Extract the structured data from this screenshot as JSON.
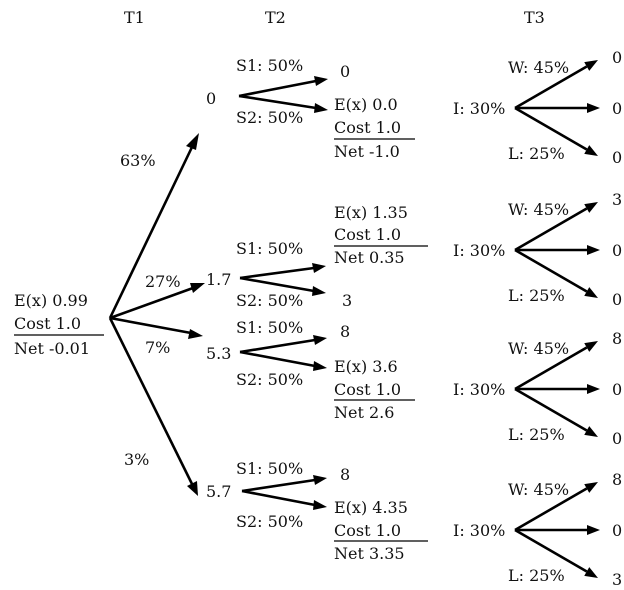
{
  "headers": {
    "t1": "T1",
    "t2": "T2",
    "t3": "T3"
  },
  "root": {
    "ex": "E(x)  0.99",
    "cost": "Cost  1.0",
    "net": "Net  -0.01"
  },
  "t1_probs": {
    "a": "63%",
    "b": "27%",
    "c": "7%",
    "d": "3%"
  },
  "t2": [
    {
      "node": "0",
      "s1": "S1: 50%",
      "s2": "S2: 50%",
      "top": "0",
      "ex": "E(x)  0.0",
      "cost": "Cost  1.0",
      "net": "Net  -1.0"
    },
    {
      "node": "1.7",
      "s1": "S1: 50%",
      "s2": "S2: 50%",
      "bottom": "3",
      "ex": "E(x)  1.35",
      "cost": "Cost  1.0",
      "net": "Net  0.35"
    },
    {
      "node": "5.3",
      "s1": "S1: 50%",
      "s2": "S2: 50%",
      "top": "8",
      "ex": "E(x)  3.6",
      "cost": "Cost  1.0",
      "net": "Net  2.6"
    },
    {
      "node": "5.7",
      "s1": "S1: 50%",
      "s2": "S2: 50%",
      "top": "8",
      "ex": "E(x)  4.35",
      "cost": "Cost  1.0",
      "net": "Net  3.35"
    }
  ],
  "t3": [
    {
      "w": "W: 45%",
      "i": "I: 30%",
      "l": "L: 25%",
      "out_top": "0",
      "out_mid": "0",
      "out_bot": "0"
    },
    {
      "w": "W: 45%",
      "i": "I: 30%",
      "l": "L: 25%",
      "out_top": "3",
      "out_mid": "0",
      "out_bot": "0"
    },
    {
      "w": "W: 45%",
      "i": "I: 30%",
      "l": "L: 25%",
      "out_top": "8",
      "out_mid": "0",
      "out_bot": "0"
    },
    {
      "w": "W: 45%",
      "i": "I: 30%",
      "l": "L: 25%",
      "out_top": "8",
      "out_mid": "0",
      "out_bot": "3"
    }
  ]
}
